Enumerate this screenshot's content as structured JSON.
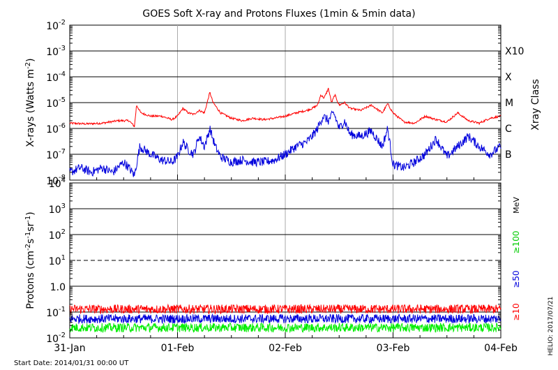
{
  "title": "GOES Soft X-ray and Protons Fluxes   (1min & 5min data)",
  "start_date": "Start Date: 2014/01/31 00:00 UT",
  "credit": "HELIO: 2017/07/21",
  "colors": {
    "xray_long": "#ff0000",
    "xray_short": "#0000dd",
    "p10": "#ff0000",
    "p50": "#0000dd",
    "p100": "#00ee00",
    "axis": "#000000",
    "day_grid": "#aaaaaa"
  },
  "chart_data": [
    {
      "type": "line",
      "panel": "xray",
      "yscale": "log",
      "ylabel_main": "X-rays (Watts m",
      "ylabel_sup": "-2",
      "ylabel_close": ")",
      "ylim": [
        1e-08,
        0.01
      ],
      "y_ticks": [
        {
          "base": "10",
          "exp": "-2"
        },
        {
          "base": "10",
          "exp": "-3"
        },
        {
          "base": "10",
          "exp": "-4"
        },
        {
          "base": "10",
          "exp": "-5"
        },
        {
          "base": "10",
          "exp": "-6"
        },
        {
          "base": "10",
          "exp": "-7"
        },
        {
          "base": "10",
          "exp": "-8"
        }
      ],
      "class_axis_label": "Xray Class",
      "classes": [
        {
          "label": "X10",
          "value": 0.001
        },
        {
          "label": "X",
          "value": 0.0001
        },
        {
          "label": "M",
          "value": 1e-05
        },
        {
          "label": "C",
          "value": 1e-06
        },
        {
          "label": "B",
          "value": 1e-07
        }
      ],
      "xlim_days": [
        0,
        4
      ],
      "series": [
        {
          "color_key": "xray_long",
          "x": [
            0.0,
            0.15,
            0.3,
            0.45,
            0.55,
            0.6,
            0.62,
            0.66,
            0.75,
            0.85,
            0.95,
            1.0,
            1.05,
            1.1,
            1.15,
            1.2,
            1.25,
            1.28,
            1.3,
            1.33,
            1.4,
            1.5,
            1.6,
            1.7,
            1.8,
            1.9,
            2.0,
            2.1,
            2.2,
            2.25,
            2.3,
            2.33,
            2.36,
            2.4,
            2.43,
            2.46,
            2.5,
            2.55,
            2.6,
            2.7,
            2.8,
            2.9,
            2.95,
            3.0,
            3.1,
            3.2,
            3.3,
            3.4,
            3.5,
            3.6,
            3.7,
            3.8,
            3.9,
            4.0
          ],
          "values": [
            1.6e-06,
            1.5e-06,
            1.6e-06,
            2e-06,
            2e-06,
            1.2e-06,
            8e-06,
            4e-06,
            3e-06,
            3e-06,
            2.2e-06,
            3e-06,
            6e-06,
            4e-06,
            3.5e-06,
            5e-06,
            4e-06,
            1.2e-05,
            2.5e-05,
            1e-05,
            4e-06,
            2.5e-06,
            2e-06,
            2.5e-06,
            2.2e-06,
            2.5e-06,
            3e-06,
            4e-06,
            5e-06,
            6e-06,
            8e-06,
            2e-05,
            1.5e-05,
            3.5e-05,
            1e-05,
            2e-05,
            8e-06,
            1e-05,
            6e-06,
            5e-06,
            8e-06,
            4e-06,
            9e-06,
            4e-06,
            1.8e-06,
            1.6e-06,
            3e-06,
            2.2e-06,
            1.8e-06,
            4e-06,
            2e-06,
            1.6e-06,
            2.5e-06,
            3e-06
          ]
        },
        {
          "color_key": "xray_short",
          "x": [
            0.0,
            0.1,
            0.2,
            0.3,
            0.4,
            0.5,
            0.55,
            0.6,
            0.65,
            0.75,
            0.85,
            0.95,
            1.0,
            1.05,
            1.1,
            1.15,
            1.2,
            1.25,
            1.28,
            1.3,
            1.35,
            1.4,
            1.5,
            1.6,
            1.7,
            1.8,
            1.9,
            2.0,
            2.1,
            2.2,
            2.25,
            2.3,
            2.35,
            2.4,
            2.45,
            2.5,
            2.55,
            2.6,
            2.7,
            2.8,
            2.9,
            2.95,
            3.0,
            3.1,
            3.2,
            3.3,
            3.4,
            3.5,
            3.6,
            3.7,
            3.8,
            3.9,
            4.0
          ],
          "values": [
            2e-08,
            3e-08,
            2e-08,
            3e-08,
            2e-08,
            5e-08,
            3e-08,
            1.5e-08,
            2e-07,
            1e-07,
            6e-08,
            5e-08,
            8e-08,
            3e-07,
            1.5e-07,
            1e-07,
            5e-07,
            2e-07,
            5e-07,
            1e-06,
            2e-07,
            8e-08,
            5e-08,
            6e-08,
            5e-08,
            5e-08,
            6e-08,
            1e-07,
            2e-07,
            3e-07,
            5e-07,
            1e-06,
            3e-06,
            2e-06,
            4e-06,
            1e-06,
            2e-06,
            6e-07,
            5e-07,
            8e-07,
            2e-07,
            1e-06,
            4e-08,
            3e-08,
            5e-08,
            1e-07,
            4e-07,
            8e-08,
            2e-07,
            5e-07,
            2e-07,
            1e-07,
            2e-07
          ]
        }
      ]
    },
    {
      "type": "line",
      "panel": "protons",
      "yscale": "log",
      "ylabel_main": "Protons (cm",
      "ylabel_sup1": "-2",
      "ylabel_mid1": "s",
      "ylabel_sup2": "-1",
      "ylabel_mid2": "sr",
      "ylabel_sup3": "-1",
      "ylabel_close": ")",
      "ylim": [
        0.01,
        10000
      ],
      "y_ticks": [
        {
          "base": "10",
          "exp": "4"
        },
        {
          "base": "10",
          "exp": "3"
        },
        {
          "base": "10",
          "exp": "2"
        },
        {
          "base": "10",
          "exp": "1"
        },
        {
          "base": "1.0",
          "exp": ""
        },
        {
          "base": "10",
          "exp": "-1"
        },
        {
          "base": "10",
          "exp": "-2"
        }
      ],
      "threshold_dashed": 10,
      "energy_unit": "MeV",
      "legend": [
        {
          "label": "≥10",
          "color_key": "p10"
        },
        {
          "label": "≥50",
          "color_key": "p50"
        },
        {
          "label": "≥100",
          "color_key": "p100"
        }
      ],
      "series": [
        {
          "color_key": "p10",
          "level": 0.13
        },
        {
          "color_key": "p50",
          "level": 0.055
        },
        {
          "color_key": "p100",
          "level": 0.025
        }
      ]
    }
  ],
  "x_axis": {
    "ticks": [
      {
        "label": "31-Jan",
        "day": 0
      },
      {
        "label": "01-Feb",
        "day": 1
      },
      {
        "label": "02-Feb",
        "day": 2
      },
      {
        "label": "03-Feb",
        "day": 3
      },
      {
        "label": "04-Feb",
        "day": 4
      }
    ]
  }
}
